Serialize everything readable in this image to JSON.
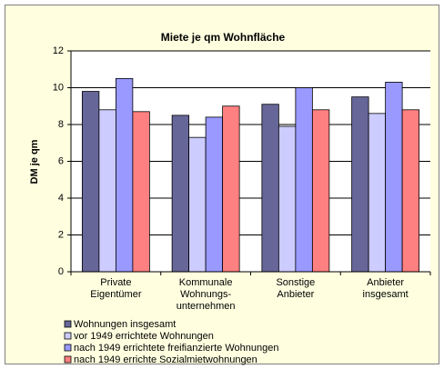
{
  "chart_data": {
    "type": "bar",
    "title": "Miete je qm Wohnfläche",
    "y_label": "DM je qm",
    "categories": [
      [
        "Private",
        "Eigentümer"
      ],
      [
        "Kommunale",
        "Wohnungs-",
        "unternehmen"
      ],
      [
        "Sonstige",
        "Anbieter"
      ],
      [
        "Anbieter",
        "insgesamt"
      ]
    ],
    "series": [
      {
        "name": "Wohnungen insgesamt",
        "color": "#666699",
        "values": [
          9.8,
          8.5,
          9.1,
          9.5
        ]
      },
      {
        "name": "vor 1949 errichtete Wohnungen",
        "color": "#ccccff",
        "values": [
          8.8,
          7.3,
          7.9,
          8.6
        ]
      },
      {
        "name": "nach 1949 errichtete freifianzierte Wohnungen",
        "color": "#9999ff",
        "values": [
          10.5,
          8.4,
          10.0,
          10.3
        ]
      },
      {
        "name": "nach 1949 errichte Sozialmietwohnungen",
        "color": "#ff8080",
        "values": [
          8.7,
          9.0,
          8.8,
          8.8
        ]
      }
    ],
    "ylim": [
      0,
      12
    ],
    "yticks": [
      0,
      2,
      4,
      6,
      8,
      10,
      12
    ],
    "grid": true
  }
}
